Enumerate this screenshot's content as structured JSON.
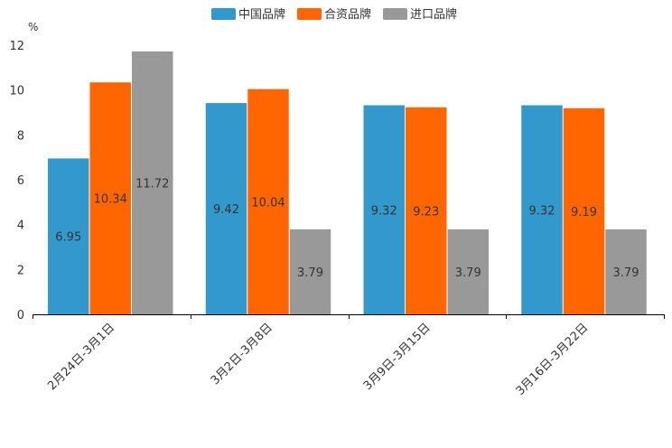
{
  "chart_data": {
    "type": "bar",
    "unit": "%",
    "categories": [
      "2月24日-3月1日",
      "3月2日-3月8日",
      "3月9日-3月15日",
      "3月16日-3月22日"
    ],
    "series": [
      {
        "name": "中国品牌",
        "color": "#3399cc",
        "values": [
          6.95,
          9.42,
          9.32,
          9.32
        ],
        "labels": [
          "6.95",
          "9.42",
          "9.32",
          "9.32"
        ]
      },
      {
        "name": "合资品牌",
        "color": "#ff6600",
        "values": [
          10.34,
          10.04,
          9.23,
          9.19
        ],
        "labels": [
          "10.34",
          "10.04",
          "9.23",
          "9.19"
        ]
      },
      {
        "name": "进口品牌",
        "color": "#999999",
        "values": [
          11.72,
          3.79,
          3.79,
          3.79
        ],
        "labels": [
          "11.72",
          "3.79",
          "3.79",
          "3.79"
        ]
      }
    ],
    "yticks": [
      "0",
      "2",
      "4",
      "6",
      "8",
      "10",
      "12"
    ],
    "ylim": [
      0,
      12
    ],
    "legend_position": "top-center"
  }
}
